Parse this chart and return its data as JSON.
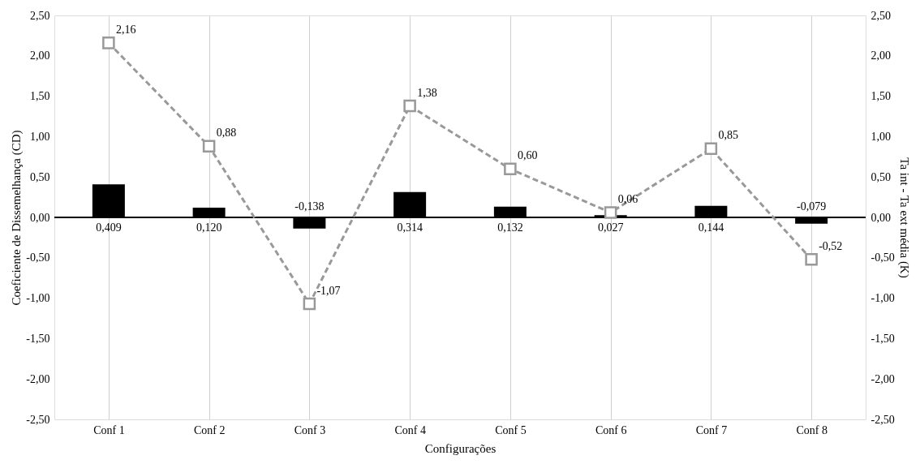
{
  "chart_data": {
    "type": "bar",
    "xlabel": "Configurações",
    "ylabel": "Coeficiente de Dissemelhança (CD)",
    "y2label": "Ta int - Ta ext média (K)",
    "categories": [
      "Conf 1",
      "Conf 2",
      "Conf 3",
      "Conf 4",
      "Conf 5",
      "Conf 6",
      "Conf 7",
      "Conf 8"
    ],
    "series": [
      {
        "color": "#000000",
        "values": [
          0.409,
          0.12,
          -0.138,
          0.314,
          0.132,
          0.027,
          0.144,
          -0.079
        ],
        "value_labels": [
          "0,409",
          "0,120",
          "-0,138",
          "0,314",
          "0,132",
          "0,027",
          "0,144",
          "-0,079"
        ]
      },
      {
        "type": "line",
        "axis": "y2",
        "color": "#999999",
        "marker": "square",
        "line_style": "dashed",
        "values": [
          2.16,
          0.88,
          -1.07,
          1.38,
          0.6,
          0.06,
          0.85,
          -0.52
        ],
        "value_labels": [
          "2,16",
          "0,88",
          "-1,07",
          "1,38",
          "0,60",
          "0,06",
          "0,85",
          "-0,52"
        ]
      }
    ],
    "ylim": [
      -2.5,
      2.5
    ],
    "yticks": [
      {
        "value": -2.5,
        "label": "-2,50"
      },
      {
        "value": -2.0,
        "label": "-2,00"
      },
      {
        "value": -1.5,
        "label": "-1,50"
      },
      {
        "value": -1.0,
        "label": "-1,00"
      },
      {
        "value": -0.5,
        "label": "-0,50"
      },
      {
        "value": 0,
        "label": "0,00"
      },
      {
        "value": 0.5,
        "label": "0,50"
      },
      {
        "value": 1.0,
        "label": "1,00"
      },
      {
        "value": 1.5,
        "label": "1,50"
      },
      {
        "value": 2.0,
        "label": "2,00"
      },
      {
        "value": 2.5,
        "label": "2,50"
      }
    ],
    "y2lim": [
      -2.5,
      2.5
    ],
    "y2ticks": [
      {
        "value": -2.5,
        "label": "-2,50"
      },
      {
        "value": -2.0,
        "label": "-2,00"
      },
      {
        "value": -1.5,
        "label": "-1,50"
      },
      {
        "value": -1.0,
        "label": "-1,00"
      },
      {
        "value": -0.5,
        "label": "-0,50"
      },
      {
        "value": 0,
        "label": "0,00"
      },
      {
        "value": 0.5,
        "label": "0,50"
      },
      {
        "value": 1.0,
        "label": "1,00"
      },
      {
        "value": 1.5,
        "label": "1,50"
      },
      {
        "value": 2.0,
        "label": "2,00"
      },
      {
        "value": 2.5,
        "label": "2,50"
      }
    ],
    "grid": "x"
  }
}
